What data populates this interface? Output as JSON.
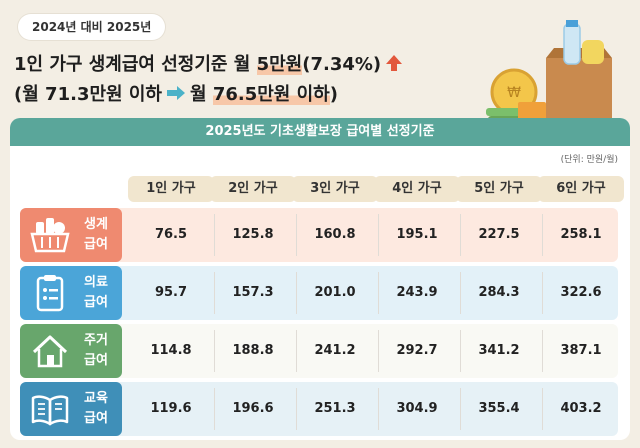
{
  "header": {
    "pill": "2024년 대비 2025년",
    "line1_a": "1인 가구 생계급여 선정기준 월 ",
    "line1_b": "5만원",
    "line1_c": "(7.34%)",
    "line2_a": "(월 71.3만원 이하",
    "line2_b": "월 ",
    "line2_c": "76.5만원 이하",
    "line2_d": ")"
  },
  "colors": {
    "teal": "#5aa69a",
    "salmon": "#ef8a70",
    "blue": "#4ba5d8",
    "green": "#68a66c",
    "navy": "#3f8fb8",
    "accent": "#e2573c"
  },
  "chart_data": {
    "type": "table",
    "title": "2025년도 기초생활보장 급여별 선정기준",
    "unit_label": "(단위: 만원/월)",
    "columns": [
      "1인 가구",
      "2인 가구",
      "3인 가구",
      "4인 가구",
      "5인 가구",
      "6인 가구"
    ],
    "rows": [
      {
        "label_line1": "생계",
        "label_line2": "급여",
        "icon": "shopping-basket-icon",
        "values": [
          "76.5",
          "125.8",
          "160.8",
          "195.1",
          "227.5",
          "258.1"
        ]
      },
      {
        "label_line1": "의료",
        "label_line2": "급여",
        "icon": "medical-clipboard-icon",
        "values": [
          "95.7",
          "157.3",
          "201.0",
          "243.9",
          "284.3",
          "322.6"
        ]
      },
      {
        "label_line1": "주거",
        "label_line2": "급여",
        "icon": "house-icon",
        "values": [
          "114.8",
          "188.8",
          "241.2",
          "292.7",
          "341.2",
          "387.1"
        ]
      },
      {
        "label_line1": "교육",
        "label_line2": "급여",
        "icon": "open-book-icon",
        "values": [
          "119.6",
          "196.6",
          "251.3",
          "304.9",
          "355.4",
          "403.2"
        ]
      }
    ]
  }
}
